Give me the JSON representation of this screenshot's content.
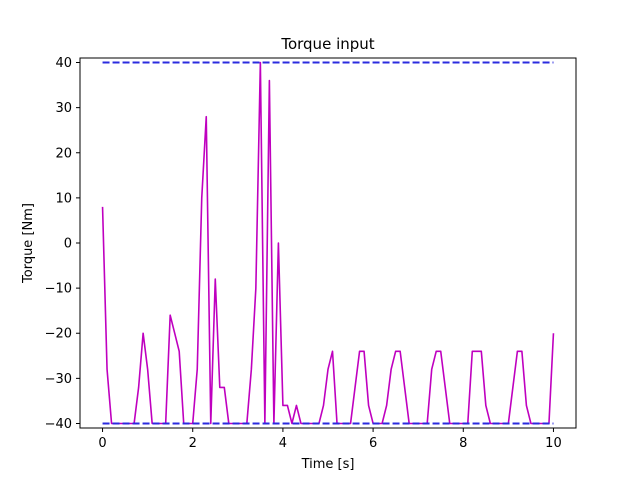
{
  "chart_data": {
    "type": "line",
    "title": "Torque input",
    "xlabel": "Time [s]",
    "ylabel": "Torque [Nm]",
    "xlim": [
      -0.5,
      10.5
    ],
    "ylim": [
      -41,
      41
    ],
    "xticks": [
      0,
      2,
      4,
      6,
      8,
      10
    ],
    "yticks": [
      -40,
      -30,
      -20,
      -10,
      0,
      10,
      20,
      30,
      40
    ],
    "grid": false,
    "colors": {
      "series": "#bf00bf",
      "limits": "#2b2bdf"
    },
    "series": [
      {
        "color": "#bf00bf",
        "style": "solid",
        "x": [
          0,
          0.1,
          0.2,
          0.3,
          0.4,
          0.5,
          0.6,
          0.7,
          0.8,
          0.9,
          1.0,
          1.1,
          1.2,
          1.3,
          1.4,
          1.5,
          1.6,
          1.7,
          1.8,
          1.9,
          2.0,
          2.1,
          2.2,
          2.3,
          2.4,
          2.5,
          2.6,
          2.7,
          2.8,
          2.9,
          3.0,
          3.1,
          3.2,
          3.3,
          3.4,
          3.5,
          3.6,
          3.7,
          3.8,
          3.9,
          4.0,
          4.1,
          4.2,
          4.3,
          4.4,
          4.5,
          4.6,
          4.7,
          4.8,
          4.9,
          5.0,
          5.1,
          5.2,
          5.3,
          5.4,
          5.5,
          5.6,
          5.7,
          5.8,
          5.9,
          6.0,
          6.1,
          6.2,
          6.3,
          6.4,
          6.5,
          6.6,
          6.7,
          6.8,
          6.9,
          7.0,
          7.1,
          7.2,
          7.3,
          7.4,
          7.5,
          7.6,
          7.7,
          7.8,
          7.9,
          8.0,
          8.1,
          8.2,
          8.3,
          8.4,
          8.5,
          8.6,
          8.7,
          8.8,
          8.9,
          9.0,
          9.1,
          9.2,
          9.3,
          9.4,
          9.5,
          9.6,
          9.7,
          9.8,
          9.9,
          10.0
        ],
        "y": [
          8,
          -28,
          -40,
          -40,
          -40,
          -40,
          -40,
          -40,
          -32,
          -20,
          -28,
          -40,
          -40,
          -40,
          -40,
          -16,
          -20,
          -24,
          -40,
          -40,
          -40,
          -28,
          10,
          28,
          -40,
          -8,
          -32,
          -32,
          -40,
          -40,
          -40,
          -40,
          -40,
          -28,
          -10,
          40,
          -40,
          36,
          -40,
          0,
          -36,
          -36,
          -40,
          -36,
          -40,
          -40,
          -40,
          -40,
          -40,
          -36,
          -28,
          -24,
          -40,
          -40,
          -40,
          -40,
          -32,
          -24,
          -24,
          -36,
          -40,
          -40,
          -40,
          -36,
          -28,
          -24,
          -24,
          -32,
          -40,
          -40,
          -40,
          -40,
          -40,
          -28,
          -24,
          -24,
          -32,
          -40,
          -40,
          -40,
          -40,
          -40,
          -24,
          -24,
          -24,
          -36,
          -40,
          -40,
          -40,
          -40,
          -40,
          -32,
          -24,
          -24,
          -36,
          -40,
          -40,
          -40,
          -40,
          -40,
          -20
        ]
      },
      {
        "color": "#2b2bdf",
        "style": "dashed",
        "x": [
          0,
          10
        ],
        "y": [
          40,
          40
        ]
      },
      {
        "color": "#2b2bdf",
        "style": "dashed",
        "x": [
          0,
          10
        ],
        "y": [
          -40,
          -40
        ]
      }
    ]
  }
}
